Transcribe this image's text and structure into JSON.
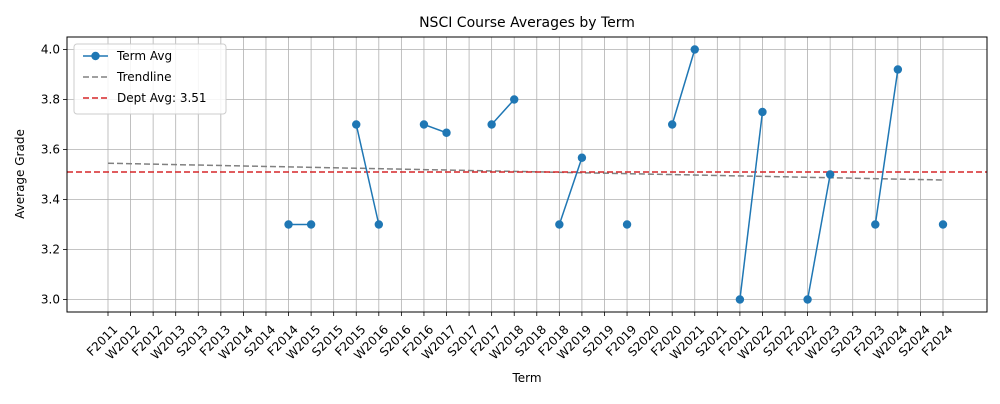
{
  "chart_data": {
    "type": "line",
    "title": "NSCI Course Averages by Term",
    "xlabel": "Term",
    "ylabel": "Average Grade",
    "categories": [
      "F2011",
      "W2012",
      "F2012",
      "W2013",
      "S2013",
      "F2013",
      "W2014",
      "S2014",
      "F2014",
      "W2015",
      "S2015",
      "F2015",
      "W2016",
      "S2016",
      "F2016",
      "W2017",
      "S2017",
      "F2017",
      "W2018",
      "S2018",
      "F2018",
      "W2019",
      "S2019",
      "F2019",
      "S2020",
      "F2020",
      "W2021",
      "S2021",
      "F2021",
      "W2022",
      "S2022",
      "F2022",
      "W2023",
      "S2023",
      "F2023",
      "W2024",
      "S2024",
      "F2024"
    ],
    "series": [
      {
        "name": "Term Avg",
        "color": "#1f77b4",
        "values": [
          null,
          null,
          null,
          null,
          null,
          null,
          null,
          null,
          3.3,
          3.3,
          null,
          3.7,
          3.3,
          null,
          3.7,
          3.667,
          null,
          3.7,
          3.8,
          null,
          3.3,
          3.567,
          null,
          3.3,
          null,
          3.7,
          4.0,
          null,
          3.0,
          3.75,
          null,
          3.0,
          3.5,
          null,
          3.3,
          3.92,
          null,
          3.3
        ]
      },
      {
        "name": "Trendline",
        "color": "#808080",
        "start": 3.545,
        "end": 3.478
      },
      {
        "name": "Dept Avg: 3.51",
        "color": "#d62728",
        "value": 3.51
      }
    ],
    "ylim": [
      2.95,
      4.05
    ],
    "yticks": [
      "3.0",
      "3.2",
      "3.4",
      "3.6",
      "3.8",
      "4.0"
    ],
    "grid": true,
    "legend": "top-left"
  }
}
